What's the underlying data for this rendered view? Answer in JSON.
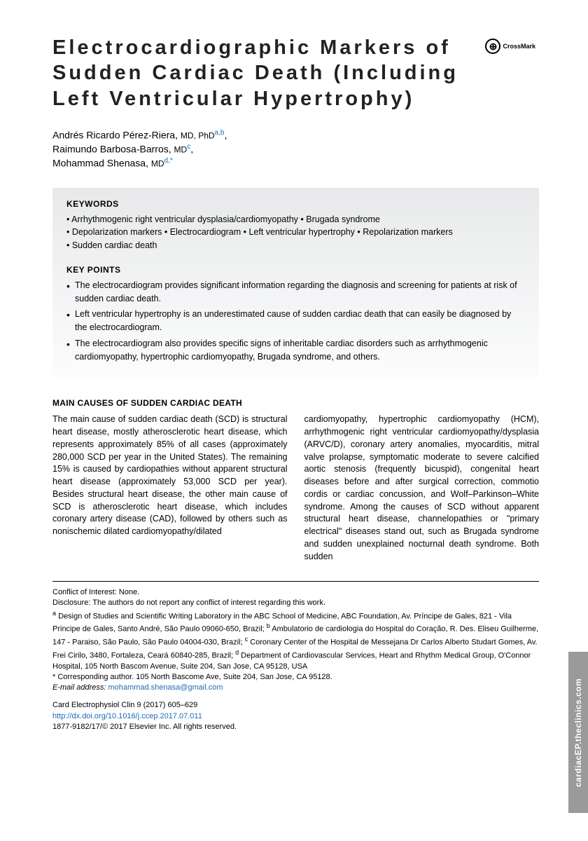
{
  "crossmark": {
    "label": "CrossMark"
  },
  "title": "Electrocardiographic Markers of Sudden Cardiac Death (Including Left Ventricular Hypertrophy)",
  "authors": [
    {
      "name": "Andrés Ricardo Pérez-Riera",
      "degrees": "MD, PhD",
      "affs": "a,b"
    },
    {
      "name": "Raimundo Barbosa-Barros",
      "degrees": "MD",
      "affs": "c"
    },
    {
      "name": "Mohammad Shenasa",
      "degrees": "MD",
      "affs": "d,*"
    }
  ],
  "keywords_heading": "KEYWORDS",
  "keywords_lines": [
    "• Arrhythmogenic right ventricular dysplasia/cardiomyopathy • Brugada syndrome",
    "• Depolarization markers • Electrocardiogram • Left ventricular hypertrophy • Repolarization markers",
    "• Sudden cardiac death"
  ],
  "keypoints_heading": "KEY POINTS",
  "keypoints": [
    "The electrocardiogram provides significant information regarding the diagnosis and screening for patients at risk of sudden cardiac death.",
    "Left ventricular hypertrophy is an underestimated cause of sudden cardiac death that can easily be diagnosed by the electrocardiogram.",
    "The electrocardiogram also provides specific signs of inheritable cardiac disorders such as arrhythmogenic cardiomyopathy, hypertrophic cardiomyopathy, Brugada syndrome, and others."
  ],
  "section_heading": "MAIN CAUSES OF SUDDEN CARDIAC DEATH",
  "body_col1": "The main cause of sudden cardiac death (SCD) is structural heart disease, mostly atherosclerotic heart disease, which represents approximately 85% of all cases (approximately 280,000 SCD per year in the United States). The remaining 15% is caused by cardiopathies without apparent structural heart disease (approximately 53,000 SCD per year). Besides structural heart disease, the other main cause of SCD is atherosclerotic heart disease, which includes coronary artery disease (CAD), followed by others such as nonischemic dilated cardiomyopathy/dilated",
  "body_col2": "cardiomyopathy, hypertrophic cardiomyopathy (HCM), arrhythmogenic right ventricular cardiomyopathy/dysplasia (ARVC/D), coronary artery anomalies, myocarditis, mitral valve prolapse, symptomatic moderate to severe calcified aortic stenosis (frequently bicuspid), congenital heart diseases before and after surgical correction, commotio cordis or cardiac concussion, and Wolf–Parkinson–White syndrome. Among the causes of SCD without apparent structural heart disease, channelopathies or \"primary electrical\" diseases stand out, such as Brugada syndrome and sudden unexplained nocturnal death syndrome. Both sudden",
  "footnotes": {
    "conflict": "Conflict of Interest: None.",
    "disclosure": "Disclosure: The authors do not report any conflict of interest regarding this work.",
    "aff_a": "Design of Studies and Scientific Writing Laboratory in the ABC School of Medicine, ABC Foundation, Av. Príncipe de Gales, 821 - Vila Principe de Gales, Santo André, São Paulo 09060-650, Brazil; ",
    "aff_b": "Ambulatorio de cardiologia do Hospital do Coração, R. Des. Eliseu Guilherme, 147 - Paraiso, São Paulo, São Paulo 04004-030, Brazil; ",
    "aff_c": "Coronary Center of the Hospital de Messejana Dr Carlos Alberto Studart Gomes, Av. Frei Cirilo, 3480, Fortaleza, Ceará 60840-285, Brazil; ",
    "aff_d": "Department of Cardiovascular Services, Heart and Rhythm Medical Group, O'Connor Hospital, 105 North Bascom Avenue, Suite 204, San Jose, CA 95128, USA",
    "corresponding": "* Corresponding author. 105 North Bascome Ave, Suite 204, San Jose, CA 95128.",
    "email_label": "E-mail address:",
    "email": "mohammad.shenasa@gmail.com"
  },
  "meta": {
    "citation": "Card Electrophysiol Clin 9 (2017) 605–629",
    "doi": "http://dx.doi.org/10.1016/j.ccep.2017.07.011",
    "copyright": "1877-9182/17/© 2017 Elsevier Inc. All rights reserved."
  },
  "side_tab": "cardiacEP.theclinics.com"
}
